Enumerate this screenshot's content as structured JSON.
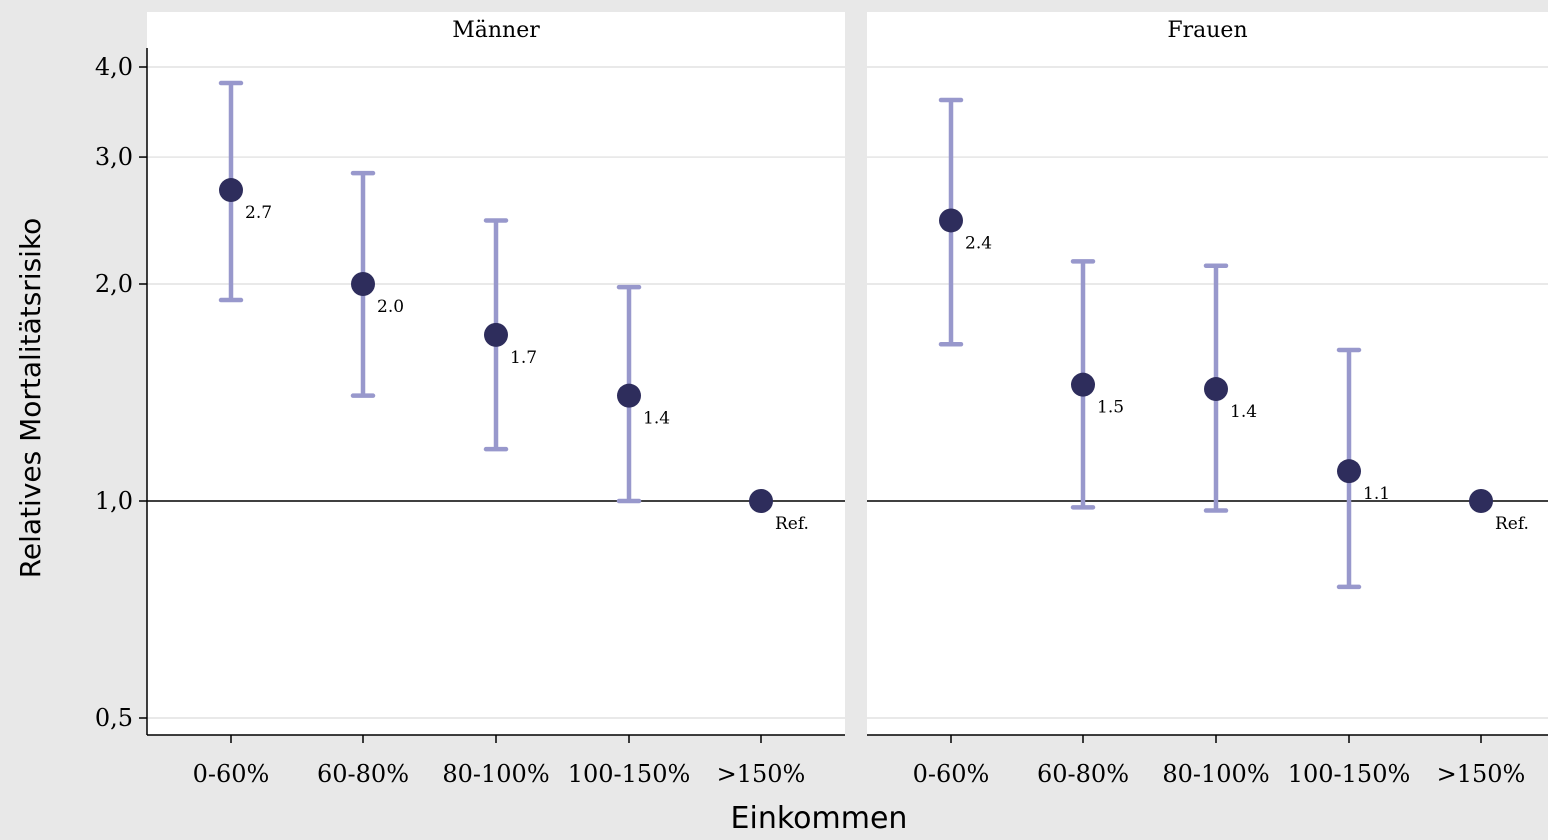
{
  "chart_data": {
    "type": "scatter",
    "y_scale": "log",
    "ylim": [
      0.5,
      4.0
    ],
    "ylabel": "Relatives Mortalitätsrisiko",
    "xlabel": "Einkommen",
    "y_ticks": [
      {
        "value": 4.0,
        "label": "4,0"
      },
      {
        "value": 3.0,
        "label": "3,0"
      },
      {
        "value": 2.0,
        "label": "2,0"
      },
      {
        "value": 1.0,
        "label": "1,0"
      },
      {
        "value": 0.5,
        "label": "0,5"
      }
    ],
    "reference_line": 1.0,
    "grid": true,
    "point_color": "#2e2d5c",
    "ci_color": "#9898cc",
    "categories": [
      "0-60%",
      "60-80%",
      "80-100%",
      "100-150%",
      ">150%"
    ],
    "panels": [
      {
        "title": "Männer",
        "points": [
          {
            "x": "0-60%",
            "y": 2.7,
            "lower": 1.9,
            "upper": 3.8,
            "label": "2.7"
          },
          {
            "x": "60-80%",
            "y": 2.0,
            "lower": 1.4,
            "upper": 2.85,
            "label": "2.0"
          },
          {
            "x": "80-100%",
            "y": 1.7,
            "lower": 1.18,
            "upper": 2.45,
            "label": "1.7"
          },
          {
            "x": "100-150%",
            "y": 1.4,
            "lower": 1.0,
            "upper": 1.98,
            "label": "1.4"
          },
          {
            "x": ">150%",
            "y": 1.0,
            "lower": null,
            "upper": null,
            "label": "Ref."
          }
        ]
      },
      {
        "title": "Frauen",
        "points": [
          {
            "x": "0-60%",
            "y": 2.45,
            "lower": 1.65,
            "upper": 3.6,
            "label": "2.4"
          },
          {
            "x": "60-80%",
            "y": 1.45,
            "lower": 0.98,
            "upper": 2.15,
            "label": "1.5"
          },
          {
            "x": "80-100%",
            "y": 1.43,
            "lower": 0.97,
            "upper": 2.12,
            "label": "1.4"
          },
          {
            "x": "100-150%",
            "y": 1.1,
            "lower": 0.76,
            "upper": 1.62,
            "label": "1.1"
          },
          {
            "x": ">150%",
            "y": 1.0,
            "lower": null,
            "upper": null,
            "label": "Ref."
          }
        ]
      }
    ]
  }
}
